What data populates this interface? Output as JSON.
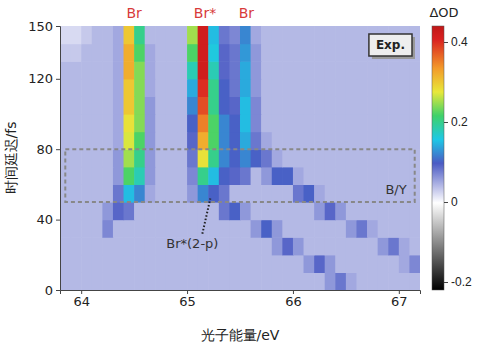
{
  "chart_data": {
    "type": "heatmap",
    "x": [
      63.85,
      63.95,
      64.05,
      64.15,
      64.25,
      64.35,
      64.45,
      64.55,
      64.65,
      64.75,
      64.85,
      64.95,
      65.05,
      65.15,
      65.25,
      65.35,
      65.45,
      65.55,
      65.65,
      65.75,
      65.85,
      65.95,
      66.05,
      66.15,
      66.25,
      66.35,
      66.45,
      66.55,
      66.65,
      66.75,
      66.85,
      66.95,
      67.05,
      67.15
    ],
    "y": [
      5,
      15,
      25,
      35,
      45,
      55,
      65,
      75,
      85,
      95,
      105,
      115,
      125,
      135,
      145
    ],
    "values": [
      [
        0.04,
        0.04,
        0.04,
        0.04,
        0.04,
        0.04,
        0.04,
        0.04,
        0.04,
        0.04,
        0.04,
        0.04,
        0.04,
        0.04,
        0.04,
        0.04,
        0.04,
        0.04,
        0.04,
        0.04,
        0.04,
        0.04,
        0.04,
        0.04,
        0.04,
        0.06,
        0.08,
        0.05,
        0.04,
        0.04,
        0.04,
        0.04,
        0.04,
        0.04
      ],
      [
        0.04,
        0.04,
        0.04,
        0.04,
        0.04,
        0.04,
        0.04,
        0.04,
        0.04,
        0.04,
        0.04,
        0.04,
        0.04,
        0.04,
        0.04,
        0.04,
        0.04,
        0.04,
        0.04,
        0.04,
        0.04,
        0.04,
        0.04,
        0.06,
        0.09,
        0.06,
        0.04,
        0.04,
        0.04,
        0.04,
        0.04,
        0.04,
        0.05,
        0.07
      ],
      [
        0.04,
        0.04,
        0.04,
        0.04,
        0.04,
        0.04,
        0.04,
        0.04,
        0.04,
        0.04,
        0.04,
        0.04,
        0.04,
        0.04,
        0.04,
        0.04,
        0.04,
        0.04,
        0.04,
        0.04,
        0.06,
        0.09,
        0.06,
        0.04,
        0.04,
        0.04,
        0.04,
        0.04,
        0.04,
        0.04,
        0.06,
        0.08,
        0.05,
        0.04
      ],
      [
        0.04,
        0.04,
        0.04,
        0.04,
        0.07,
        0.04,
        0.04,
        0.04,
        0.04,
        0.04,
        0.04,
        0.04,
        0.04,
        0.04,
        0.04,
        0.04,
        0.04,
        0.04,
        0.06,
        0.1,
        0.06,
        0.04,
        0.04,
        0.04,
        0.04,
        0.04,
        0.04,
        0.06,
        0.08,
        0.05,
        0.04,
        0.04,
        0.04,
        0.04
      ],
      [
        0.04,
        0.04,
        0.04,
        0.04,
        0.06,
        0.09,
        0.08,
        0.04,
        0.04,
        0.04,
        0.04,
        0.04,
        0.04,
        0.04,
        0.04,
        0.08,
        0.1,
        0.06,
        0.04,
        0.04,
        0.04,
        0.04,
        0.04,
        0.04,
        0.06,
        0.09,
        0.06,
        0.04,
        0.04,
        0.04,
        0.04,
        0.04,
        0.04,
        0.04
      ],
      [
        0.04,
        0.04,
        0.04,
        0.04,
        0.04,
        0.08,
        0.15,
        0.12,
        0.05,
        0.04,
        0.04,
        0.04,
        0.06,
        0.12,
        0.1,
        0.08,
        0.04,
        0.04,
        0.04,
        0.04,
        0.04,
        0.04,
        0.08,
        0.1,
        0.05,
        0.04,
        0.04,
        0.04,
        0.04,
        0.04,
        0.04,
        0.04,
        0.04,
        0.04
      ],
      [
        0.04,
        0.04,
        0.04,
        0.04,
        0.04,
        0.06,
        0.22,
        0.18,
        0.06,
        0.04,
        0.04,
        0.04,
        0.07,
        0.2,
        0.15,
        0.1,
        0.09,
        0.08,
        0.04,
        0.06,
        0.1,
        0.1,
        0.05,
        0.04,
        0.04,
        0.04,
        0.04,
        0.04,
        0.04,
        0.04,
        0.04,
        0.04,
        0.04,
        0.04
      ],
      [
        0.04,
        0.04,
        0.04,
        0.04,
        0.04,
        0.06,
        0.25,
        0.2,
        0.06,
        0.04,
        0.04,
        0.04,
        0.08,
        0.28,
        0.2,
        0.12,
        0.1,
        0.12,
        0.1,
        0.08,
        0.05,
        0.04,
        0.04,
        0.04,
        0.04,
        0.04,
        0.04,
        0.04,
        0.04,
        0.04,
        0.04,
        0.04,
        0.04,
        0.04
      ],
      [
        0.04,
        0.04,
        0.04,
        0.04,
        0.04,
        0.05,
        0.27,
        0.22,
        0.06,
        0.04,
        0.04,
        0.04,
        0.09,
        0.32,
        0.22,
        0.12,
        0.1,
        0.14,
        0.08,
        0.05,
        0.04,
        0.04,
        0.04,
        0.04,
        0.04,
        0.04,
        0.04,
        0.04,
        0.04,
        0.04,
        0.04,
        0.04,
        0.04,
        0.04
      ],
      [
        0.04,
        0.04,
        0.04,
        0.04,
        0.04,
        0.05,
        0.28,
        0.24,
        0.06,
        0.04,
        0.04,
        0.04,
        0.1,
        0.35,
        0.22,
        0.12,
        0.1,
        0.15,
        0.07,
        0.04,
        0.04,
        0.04,
        0.04,
        0.04,
        0.04,
        0.04,
        0.04,
        0.04,
        0.04,
        0.04,
        0.04,
        0.04,
        0.04,
        0.04
      ],
      [
        0.04,
        0.04,
        0.04,
        0.04,
        0.04,
        0.05,
        0.3,
        0.24,
        0.06,
        0.04,
        0.04,
        0.04,
        0.12,
        0.38,
        0.2,
        0.1,
        0.09,
        0.15,
        0.07,
        0.04,
        0.04,
        0.04,
        0.04,
        0.04,
        0.04,
        0.04,
        0.04,
        0.04,
        0.04,
        0.04,
        0.04,
        0.04,
        0.04,
        0.04
      ],
      [
        0.04,
        0.04,
        0.04,
        0.04,
        0.04,
        0.05,
        0.3,
        0.24,
        0.05,
        0.04,
        0.04,
        0.04,
        0.14,
        0.4,
        0.2,
        0.1,
        0.08,
        0.14,
        0.06,
        0.04,
        0.04,
        0.04,
        0.04,
        0.04,
        0.04,
        0.04,
        0.04,
        0.04,
        0.04,
        0.04,
        0.04,
        0.04,
        0.04,
        0.04
      ],
      [
        0.04,
        0.04,
        0.04,
        0.04,
        0.04,
        0.05,
        0.32,
        0.24,
        0.05,
        0.04,
        0.04,
        0.04,
        0.18,
        0.42,
        0.18,
        0.09,
        0.08,
        0.14,
        0.06,
        0.04,
        0.04,
        0.04,
        0.04,
        0.04,
        0.04,
        0.04,
        0.04,
        0.04,
        0.04,
        0.04,
        0.04,
        0.04,
        0.04,
        0.04
      ],
      [
        0.03,
        0.03,
        0.04,
        0.04,
        0.04,
        0.05,
        0.32,
        0.22,
        0.05,
        0.04,
        0.04,
        0.04,
        0.22,
        0.42,
        0.16,
        0.09,
        0.08,
        0.13,
        0.06,
        0.04,
        0.04,
        0.04,
        0.04,
        0.04,
        0.04,
        0.04,
        0.04,
        0.04,
        0.04,
        0.04,
        0.04,
        0.04,
        0.04,
        0.04
      ],
      [
        0.02,
        0.02,
        0.03,
        0.04,
        0.04,
        0.05,
        0.3,
        0.2,
        0.04,
        0.04,
        0.04,
        0.04,
        0.25,
        0.42,
        0.15,
        0.08,
        0.07,
        0.12,
        0.05,
        0.04,
        0.04,
        0.04,
        0.04,
        0.04,
        0.04,
        0.04,
        0.04,
        0.04,
        0.04,
        0.04,
        0.04,
        0.04,
        0.04,
        0.04
      ]
    ],
    "xlim": [
      63.8,
      67.2
    ],
    "xticks": [
      64,
      65,
      66,
      67
    ],
    "ylim": [
      0,
      150
    ],
    "yticks": [
      0,
      40,
      80,
      120,
      150
    ],
    "xlabel": "光子能量/eV",
    "ylabel": "时间延迟/fs",
    "colorbar": {
      "title": "ΔOD",
      "range": [
        -0.22,
        0.44
      ],
      "ticks": [
        -0.2,
        0,
        0.2,
        0.4
      ]
    },
    "panel_label": "Exp.",
    "annotations": [
      {
        "text": "Br",
        "x": 64.5,
        "color": "#d83a3a"
      },
      {
        "text": "Br*",
        "x": 65.17,
        "color": "#d83a3a"
      },
      {
        "text": "Br",
        "x": 65.56,
        "color": "#d83a3a"
      }
    ],
    "region": {
      "text": "B/Y",
      "x": [
        63.85,
        67.15
      ],
      "y": [
        50,
        80
      ]
    },
    "arrow_label": {
      "text": "Br*(2-p)",
      "x": 65.05,
      "y": 24,
      "target": [
        65.22,
        52
      ]
    }
  }
}
